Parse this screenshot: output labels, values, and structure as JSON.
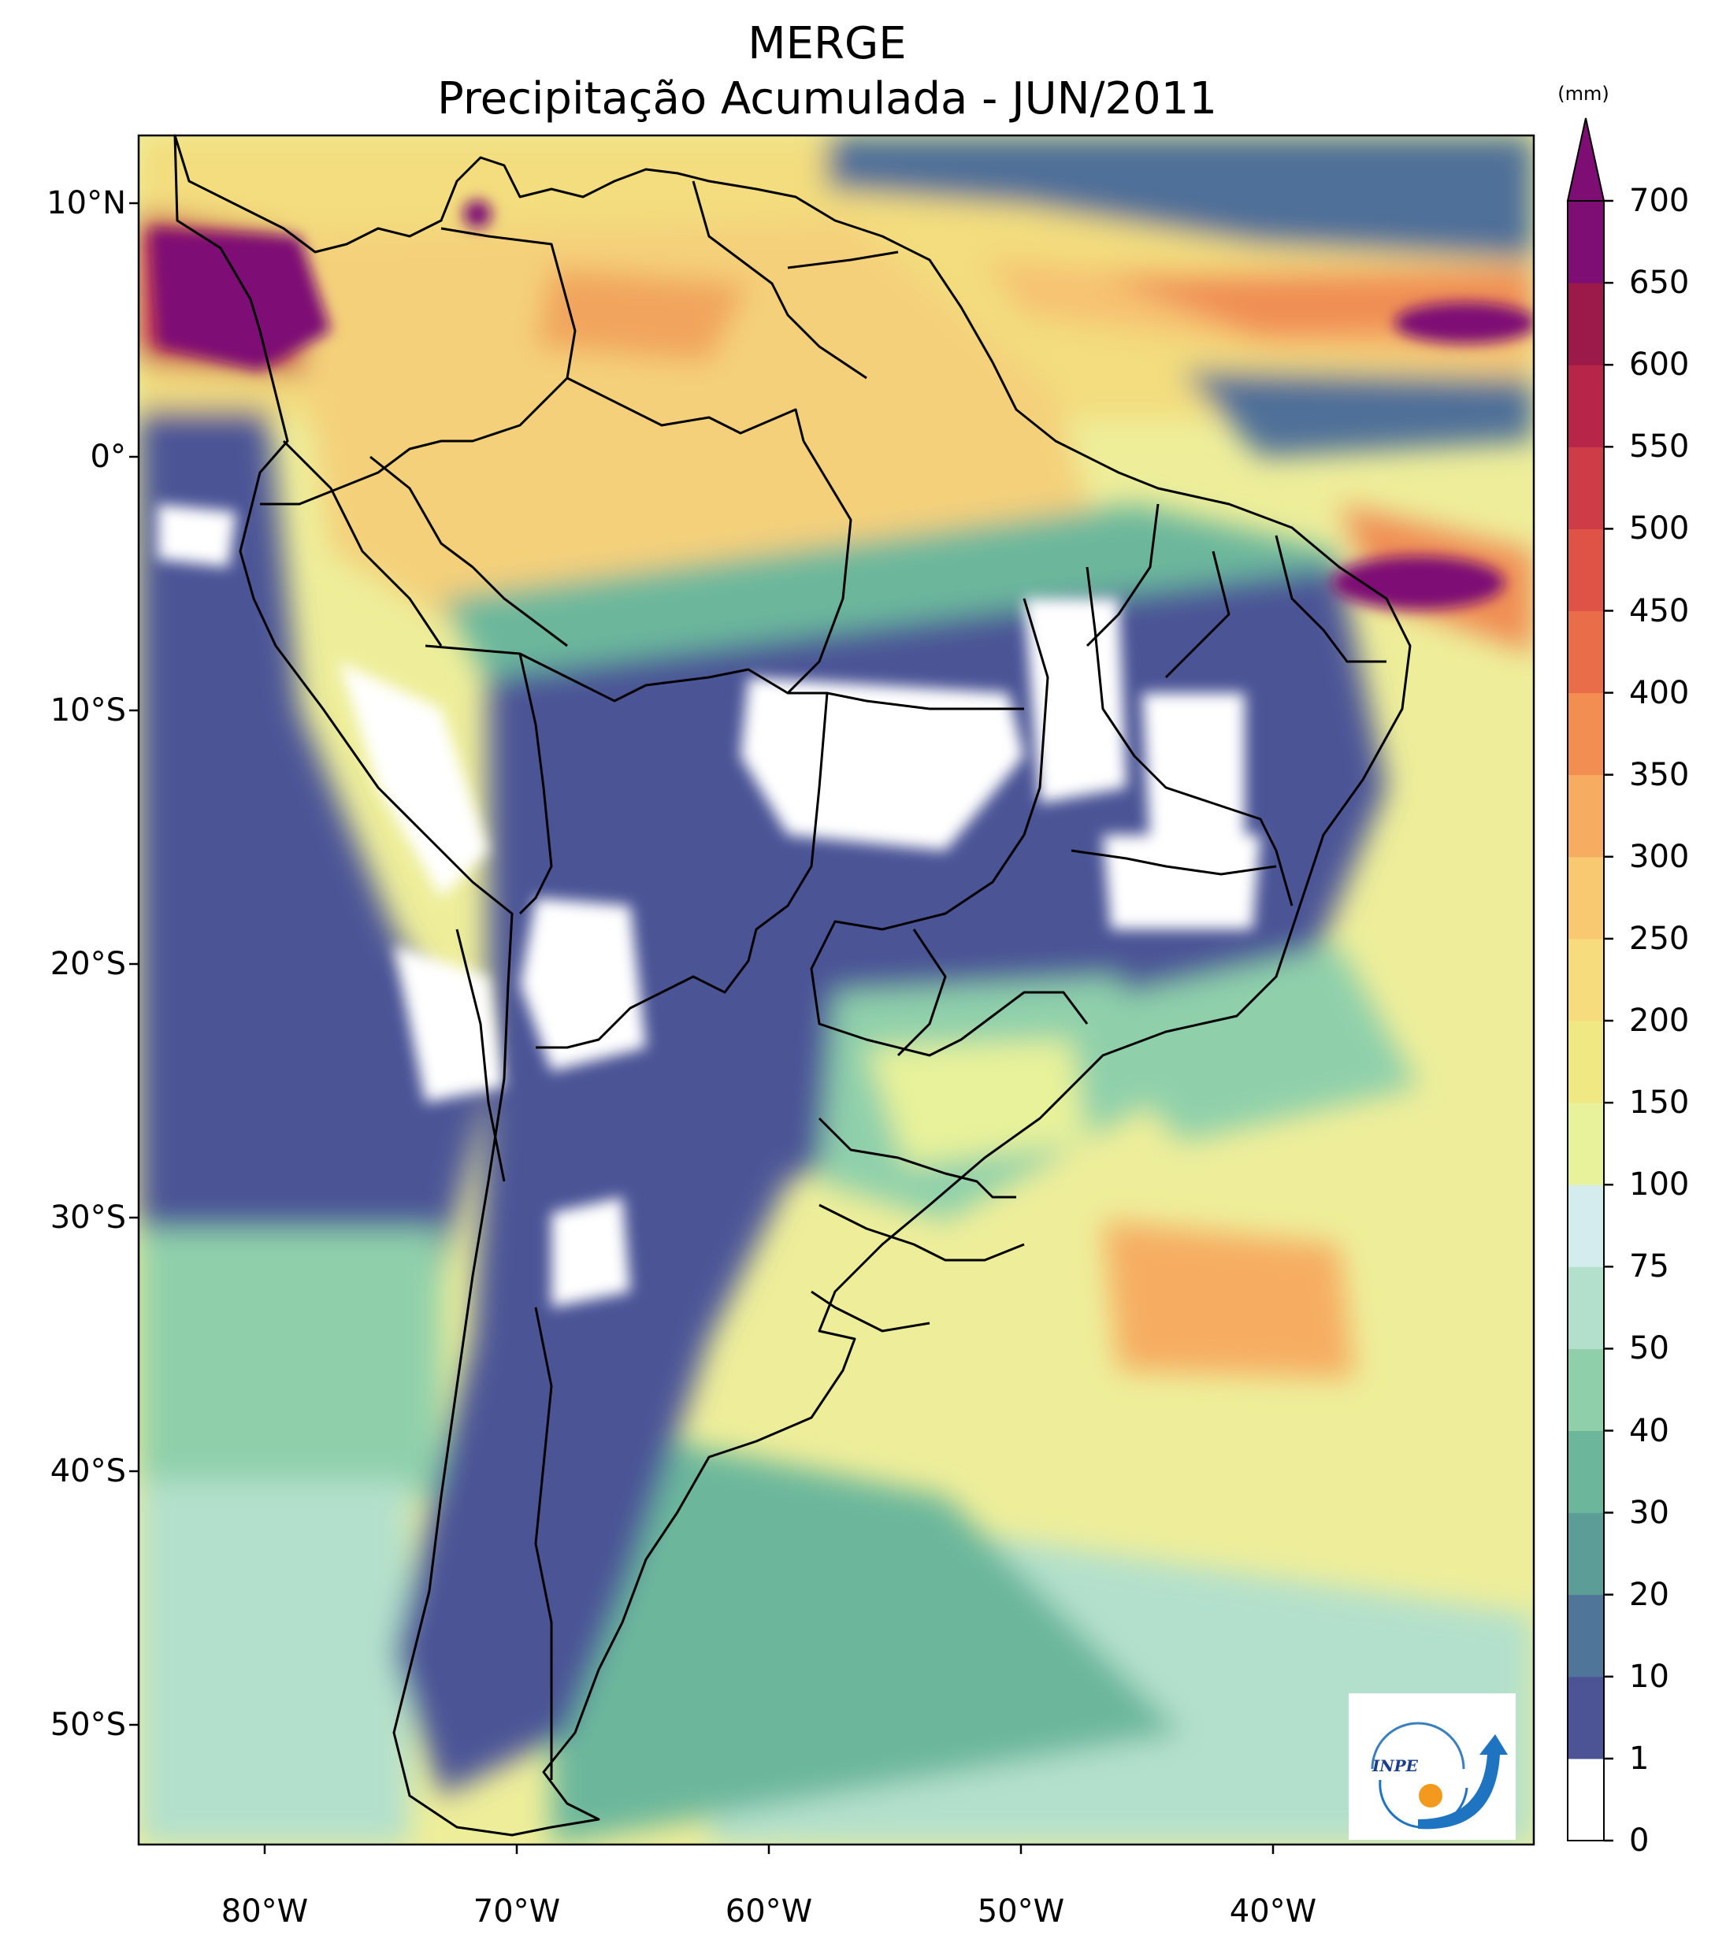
{
  "title": {
    "line1": "MERGE",
    "line2": "Precipitação Acumulada - JUN/2011"
  },
  "axes": {
    "lat_ticks": [
      "10°N",
      "0°",
      "10°S",
      "20°S",
      "30°S",
      "40°S",
      "50°S"
    ],
    "lon_ticks": [
      "80°W",
      "70°W",
      "60°W",
      "50°W",
      "40°W"
    ]
  },
  "colorbar": {
    "unit": "(mm)",
    "levels": [
      "0",
      "1",
      "10",
      "20",
      "30",
      "40",
      "50",
      "75",
      "100",
      "150",
      "200",
      "250",
      "300",
      "350",
      "400",
      "450",
      "500",
      "550",
      "600",
      "650",
      "700"
    ],
    "colors": [
      "#ffffff",
      "#4c5496",
      "#4f7698",
      "#5c9d97",
      "#6cb79c",
      "#8fd0ab",
      "#b3e0cc",
      "#d4eced",
      "#e8f29a",
      "#f0e882",
      "#f6dc7c",
      "#f8c970",
      "#f6ad62",
      "#f38e53",
      "#ea6d4a",
      "#de5346",
      "#cd3c47",
      "#b72648",
      "#9b1a4a",
      "#7e0d74"
    ],
    "extend_color": "#7e0d74"
  },
  "logo": {
    "text": "INPE"
  },
  "colors": {
    "ocean_base": "#eeee9a",
    "land_outline": "#000000"
  }
}
